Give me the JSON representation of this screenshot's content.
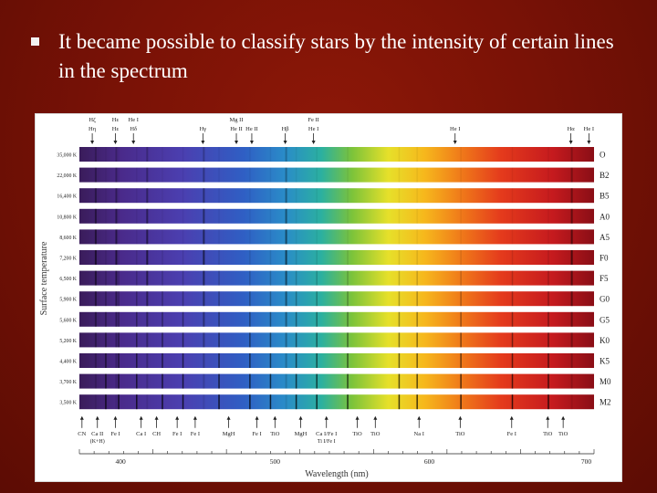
{
  "slide": {
    "bullet_text": "It became possible to classify stars by the intensity of certain lines in the spectrum"
  },
  "figure": {
    "y_axis_title": "Surface temperature",
    "x_axis_title": "Wavelength (nm)",
    "x_ticks": [
      "400",
      "500",
      "600",
      "700"
    ],
    "top_labels": [
      {
        "upper": "Hζ",
        "lower": "Hη"
      },
      {
        "upper": "Hε",
        "lower": "Hε"
      },
      {
        "upper": "He I",
        "lower": "Hδ"
      },
      {
        "upper": "",
        "lower": "Hγ"
      },
      {
        "upper": "Mg II",
        "lower": "He II"
      },
      {
        "upper": "",
        "lower": "He II"
      },
      {
        "upper": "",
        "lower": "Hβ"
      },
      {
        "upper": "Fe II",
        "lower": "He I"
      },
      {
        "upper": "",
        "lower": "He I"
      },
      {
        "upper": "",
        "lower": "Hα"
      },
      {
        "upper": "",
        "lower": "He I"
      }
    ],
    "rows": [
      {
        "temp": "35,000 K",
        "cls": "O"
      },
      {
        "temp": "22,000 K",
        "cls": "B2"
      },
      {
        "temp": "16,400 K",
        "cls": "B5"
      },
      {
        "temp": "10,800 K",
        "cls": "A0"
      },
      {
        "temp": "8,600 K",
        "cls": "A5"
      },
      {
        "temp": "7,200 K",
        "cls": "F0"
      },
      {
        "temp": "6,500 K",
        "cls": "F5"
      },
      {
        "temp": "5,900 K",
        "cls": "G0"
      },
      {
        "temp": "5,600 K",
        "cls": "G5"
      },
      {
        "temp": "5,200 K",
        "cls": "K0"
      },
      {
        "temp": "4,400 K",
        "cls": "K5"
      },
      {
        "temp": "3,700 K",
        "cls": "M0"
      },
      {
        "temp": "3,500 K",
        "cls": "M2"
      }
    ],
    "bottom_labels": [
      {
        "text": "CN",
        "sub": ""
      },
      {
        "text": "Ca II",
        "sub": "(K+H)"
      },
      {
        "text": "Fe I",
        "sub": ""
      },
      {
        "text": "Ca I",
        "sub": ""
      },
      {
        "text": "CH",
        "sub": ""
      },
      {
        "text": "Fe I",
        "sub": ""
      },
      {
        "text": "Fe I",
        "sub": ""
      },
      {
        "text": "MgH",
        "sub": ""
      },
      {
        "text": "Fe I",
        "sub": ""
      },
      {
        "text": "TiO",
        "sub": ""
      },
      {
        "text": "MgH",
        "sub": ""
      },
      {
        "text": "Ca I/Fe I",
        "sub": "Ti I/Fe I"
      },
      {
        "text": "TiO",
        "sub": ""
      },
      {
        "text": "TiO",
        "sub": ""
      },
      {
        "text": "Na I",
        "sub": ""
      },
      {
        "text": "TiO",
        "sub": ""
      },
      {
        "text": "Fe I",
        "sub": ""
      },
      {
        "text": "TiO",
        "sub": ""
      },
      {
        "text": "TiO",
        "sub": ""
      }
    ]
  }
}
